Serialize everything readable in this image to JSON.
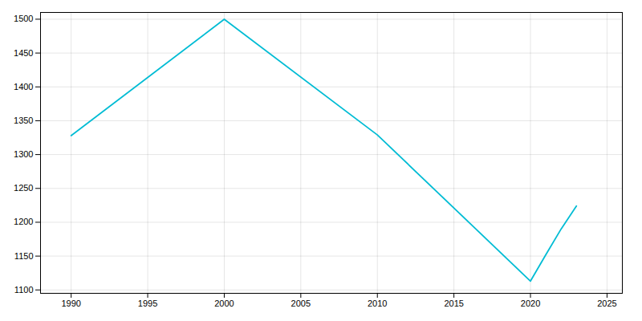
{
  "chart_data": {
    "type": "line",
    "x": [
      1990,
      2000,
      2010,
      2020,
      2021,
      2022,
      2023
    ],
    "values": [
      1328,
      1500,
      1329,
      1113,
      1152,
      1190,
      1224
    ],
    "color": "#00BCD4",
    "xlim": [
      1988,
      2026
    ],
    "ylim": [
      1095,
      1510
    ],
    "xticks": [
      1990,
      1995,
      2000,
      2005,
      2010,
      2015,
      2020,
      2025
    ],
    "yticks": [
      1100,
      1150,
      1200,
      1250,
      1300,
      1350,
      1400,
      1450,
      1500
    ],
    "grid": true
  }
}
